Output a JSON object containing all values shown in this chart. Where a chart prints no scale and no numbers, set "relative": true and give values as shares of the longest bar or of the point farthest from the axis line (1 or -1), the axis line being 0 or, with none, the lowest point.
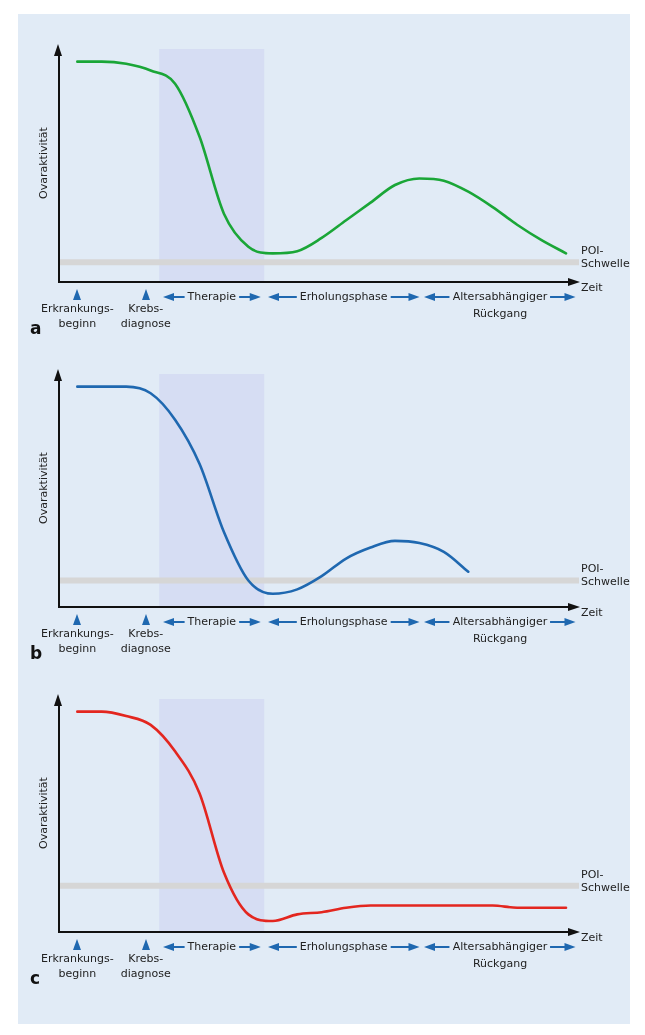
{
  "chart_data": [
    {
      "type": "line",
      "relative": true,
      "title": "a",
      "ylabel": "Ovaraktivität",
      "xlabel": "Zeit",
      "marker": "none",
      "categories": [
        null,
        null,
        null,
        null,
        null,
        null,
        null,
        null,
        null,
        null,
        null,
        null,
        null,
        null,
        null,
        null,
        null,
        null,
        null,
        null,
        null
      ],
      "series": [
        {
          "color": "#1aa637",
          "values": [
            1,
            1,
            0.99,
            0.96,
            0.9,
            0.66,
            0.31,
            0.16,
            0.13,
            0.14,
            0.2,
            0.28,
            0.36,
            0.44,
            0.47,
            0.46,
            0.41,
            0.34,
            0.26,
            0.19,
            0.13
          ]
        }
      ],
      "ref_lines": [
        {
          "axis": "y",
          "value": 0.09,
          "label": "POI- Schwelle",
          "color": "#d6d6d6"
        }
      ],
      "annotations": [
        "Erkrankungs- beginn",
        "Krebs- diagnose",
        "Therapie",
        "Erholungsphase",
        "Altersabhängiger Rückgang"
      ]
    },
    {
      "type": "line",
      "relative": true,
      "title": "b",
      "ylabel": "Ovaraktivität",
      "xlabel": "Zeit",
      "marker": "none",
      "categories": [
        null,
        null,
        null,
        null,
        null,
        null,
        null,
        null,
        null,
        null,
        null,
        null,
        null,
        null,
        null,
        null,
        null,
        null,
        null,
        null,
        null
      ],
      "series": [
        {
          "color": "#1f68b0",
          "values": [
            1,
            1,
            1,
            0.97,
            0.85,
            0.65,
            0.34,
            0.12,
            0.06,
            0.08,
            0.14,
            0.22,
            0.27,
            0.3,
            0.29,
            0.25,
            0.16,
            null,
            null,
            null,
            null
          ]
        }
      ],
      "ref_lines": [
        {
          "axis": "y",
          "value": 0.12,
          "label": "POI- Schwelle",
          "color": "#d6d6d6"
        }
      ],
      "annotations": [
        "Erkrankungs- beginn",
        "Krebs- diagnose",
        "Therapie",
        "Erholungsphase",
        "Altersabhängiger Rückgang"
      ]
    },
    {
      "type": "line",
      "relative": true,
      "title": "c",
      "ylabel": "Ovaraktivität",
      "xlabel": "Zeit",
      "marker": "none",
      "categories": [
        null,
        null,
        null,
        null,
        null,
        null,
        null,
        null,
        null,
        null,
        null,
        null,
        null,
        null,
        null,
        null,
        null,
        null,
        null,
        null,
        null
      ],
      "series": [
        {
          "color": "#e3261f",
          "values": [
            1,
            1,
            0.98,
            0.94,
            0.82,
            0.63,
            0.27,
            0.08,
            0.05,
            0.08,
            0.09,
            0.11,
            0.12,
            0.12,
            0.12,
            0.12,
            0.12,
            0.12,
            0.11,
            0.11,
            0.11
          ]
        }
      ],
      "ref_lines": [
        {
          "axis": "y",
          "value": 0.21,
          "label": "POI- Schwelle",
          "color": "#d6d6d6"
        }
      ],
      "annotations": [
        "Erkrankungs- beginn",
        "Krebs- diagnose",
        "Therapie",
        "Erholungsphase",
        "Altersabhängiger Rückgang"
      ]
    }
  ]
}
